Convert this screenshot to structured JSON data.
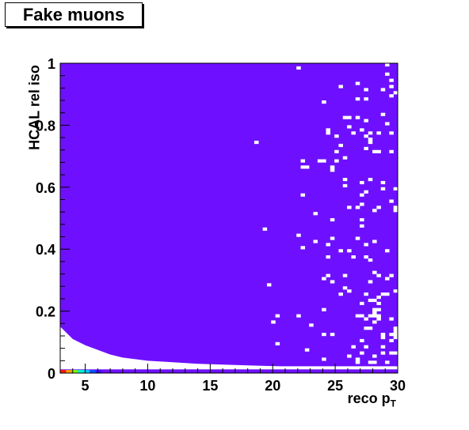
{
  "chart_data": {
    "type": "heatmap",
    "title": "Fake muons",
    "xlabel": "reco p",
    "xlabel_subscript": "T",
    "ylabel": "HCAL rel iso",
    "xlim": [
      3,
      30
    ],
    "ylim": [
      0,
      1
    ],
    "x_ticks": [
      5,
      10,
      15,
      20,
      25,
      30
    ],
    "y_ticks": [
      0,
      0.2,
      0.4,
      0.6,
      0.8,
      1
    ],
    "bins": {
      "x": 80,
      "y": 100
    },
    "fill_color": "#6e10ff",
    "low_edge_colors": [
      "#ff1a00",
      "#ffa000",
      "#7cff00",
      "#00ffc8",
      "#00c8ff",
      "#0a50ff",
      "#3a10ff"
    ],
    "empty_region_boundary": [
      [
        3,
        0.15
      ],
      [
        3.5,
        0.13
      ],
      [
        4,
        0.11
      ],
      [
        5,
        0.09
      ],
      [
        6,
        0.075
      ],
      [
        7,
        0.06
      ],
      [
        8,
        0.05
      ],
      [
        10,
        0.04
      ],
      [
        12,
        0.035
      ],
      [
        14,
        0.03
      ],
      [
        18,
        0.025
      ],
      [
        22,
        0.02
      ],
      [
        30,
        0.018
      ]
    ],
    "grid": false,
    "legend": "none"
  }
}
